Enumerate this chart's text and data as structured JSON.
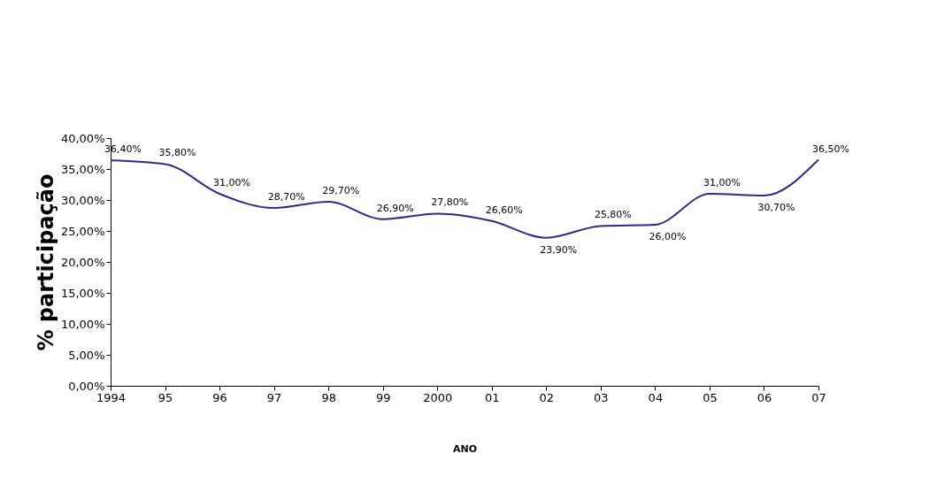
{
  "chart_data": {
    "type": "line",
    "ylabel": "% participação",
    "xlabel": "ANO",
    "categories": [
      "1994",
      "95",
      "96",
      "97",
      "98",
      "99",
      "2000",
      "01",
      "02",
      "03",
      "04",
      "05",
      "06",
      "07"
    ],
    "series": [
      {
        "color": "#2b2b8c",
        "values": [
          36.4,
          35.8,
          31.0,
          28.7,
          29.7,
          26.9,
          27.8,
          26.6,
          23.9,
          25.8,
          26.0,
          31.0,
          30.7,
          36.5
        ],
        "value_labels": [
          "36,40%",
          "35,80%",
          "31,00%",
          "28,70%",
          "29,70%",
          "26,90%",
          "27,80%",
          "26,60%",
          "23,90%",
          "25,80%",
          "26,00%",
          "31,00%",
          "30,70%",
          "36,50%"
        ]
      }
    ],
    "ylim": [
      0,
      40
    ],
    "yticks": [
      {
        "value": 0,
        "label": "0,00%"
      },
      {
        "value": 5,
        "label": "5,00%"
      },
      {
        "value": 10,
        "label": "10,00%"
      },
      {
        "value": 15,
        "label": "15,00%"
      },
      {
        "value": 20,
        "label": "20,00%"
      },
      {
        "value": 25,
        "label": "25,00%"
      },
      {
        "value": 30,
        "label": "30,00%"
      },
      {
        "value": 35,
        "label": "35,00%"
      },
      {
        "value": 40,
        "label": "40,00%"
      }
    ],
    "grid": false,
    "marker": "none",
    "line_style": "solid"
  }
}
